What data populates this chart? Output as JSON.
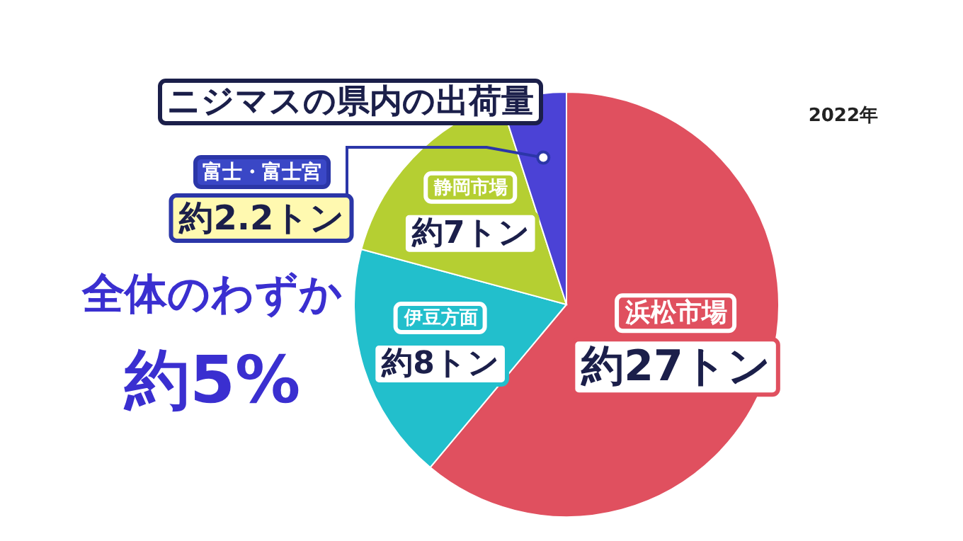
{
  "chart_data": {
    "type": "pie",
    "title": "ニジマスの県内の出荷量",
    "subtitle": "2022年",
    "categories": [
      "浜松市場",
      "伊豆方面",
      "静岡市場",
      "富士・富士宮"
    ],
    "values": [
      27,
      8,
      7,
      2.2
    ],
    "colors": [
      "#e0505f",
      "#22bfcc",
      "#b5cf32",
      "#4b42d6"
    ],
    "value_labels": [
      "約27トン",
      "約8トン",
      "約7トン",
      "約2.2トン"
    ],
    "annotations": [
      "全体のわずか",
      "約5%"
    ]
  }
}
